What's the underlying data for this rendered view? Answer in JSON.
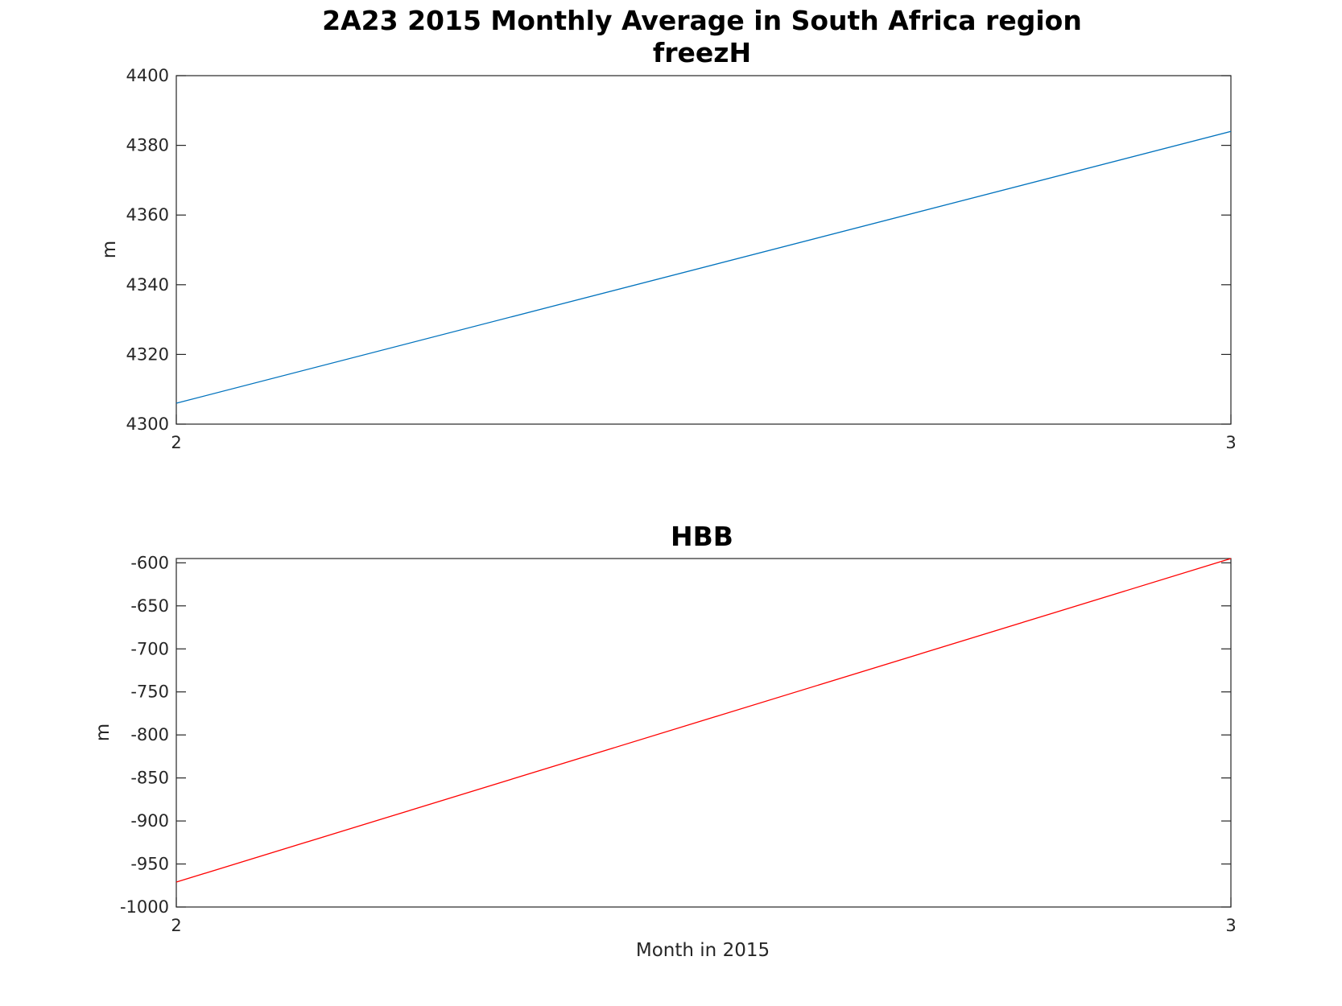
{
  "figure": {
    "title_line1": "2A23 2015 Monthly Average in South Africa region"
  },
  "chart_data": [
    {
      "type": "line",
      "title": "freezH",
      "xlabel": "",
      "ylabel": "m",
      "xlim": [
        2,
        3
      ],
      "ylim": [
        4300,
        4400
      ],
      "xticks": [
        2,
        3
      ],
      "yticks": [
        4300,
        4320,
        4340,
        4360,
        4380,
        4400
      ],
      "grid": false,
      "series": [
        {
          "color": "#0072BD",
          "x": [
            2,
            3
          ],
          "y": [
            4306,
            4384
          ]
        }
      ]
    },
    {
      "type": "line",
      "title": "HBB",
      "xlabel": "Month in 2015",
      "ylabel": "m",
      "xlim": [
        2,
        3
      ],
      "ylim": [
        -1000,
        -595
      ],
      "xticks": [
        2,
        3
      ],
      "yticks": [
        -1000,
        -950,
        -900,
        -850,
        -800,
        -750,
        -700,
        -650,
        -600
      ],
      "grid": false,
      "series": [
        {
          "color": "#FF0000",
          "x": [
            2,
            3
          ],
          "y": [
            -971,
            -595
          ]
        }
      ]
    }
  ]
}
